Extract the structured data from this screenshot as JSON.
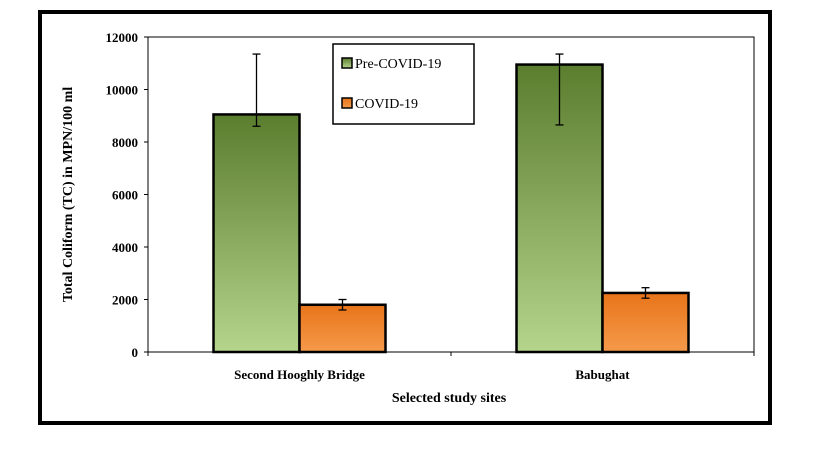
{
  "chart_data": {
    "type": "bar",
    "title": "",
    "xlabel": "Selected  study sites",
    "ylabel": "Total Coliform (TC) in MPN/100 ml",
    "categories": [
      "Second Hooghly Bridge",
      "Babughat"
    ],
    "ylim": [
      0,
      12000
    ],
    "yticks": [
      "0",
      "2000",
      "4000",
      "6000",
      "8000",
      "10000",
      "12000"
    ],
    "grid": false,
    "legend_position": "top-center",
    "series": [
      {
        "name": "Pre-COVID-19",
        "values": [
          9050,
          10950
        ],
        "error": [
          [
            450,
            2300
          ],
          [
            2300,
            400
          ]
        ],
        "color_top": "#5a7d2e",
        "color_bottom": "#b5d48c"
      },
      {
        "name": "COVID-19",
        "values": [
          1800,
          2250
        ],
        "error": [
          [
            200,
            200
          ],
          [
            200,
            200
          ]
        ],
        "color_top": "#e8741a",
        "color_bottom": "#f59a4a"
      }
    ]
  }
}
